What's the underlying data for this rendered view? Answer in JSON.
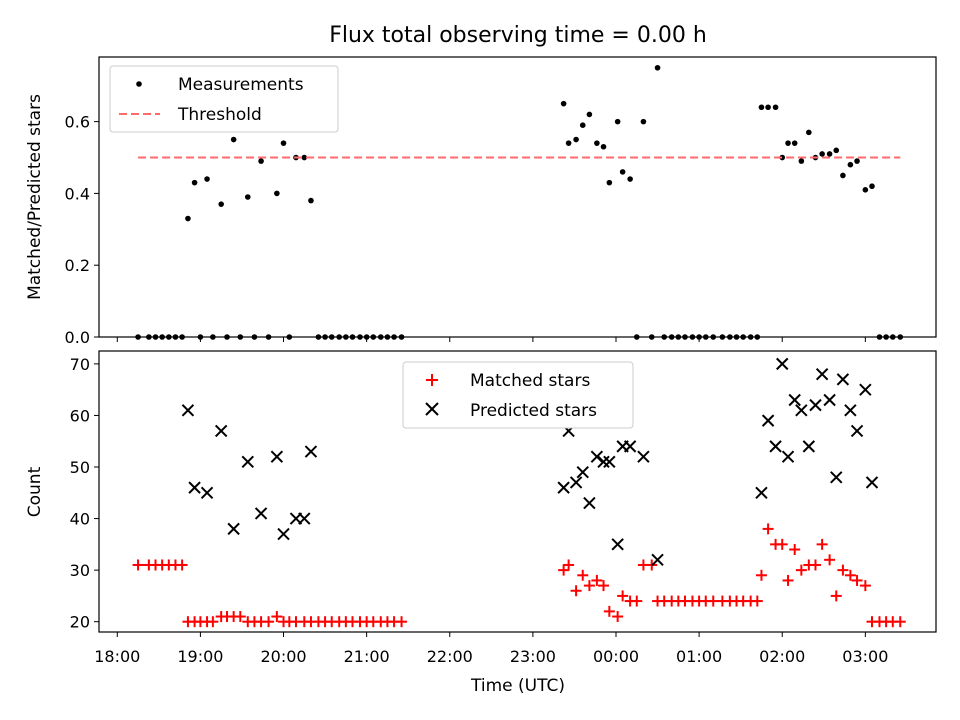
{
  "chart_data": [
    {
      "type": "scatter",
      "title": "Flux total observing time = 0.00 h",
      "xlabel": "",
      "ylabel": "Matched/Predicted stars",
      "ylim": [
        0,
        0.78
      ],
      "yticks": [
        "0.0",
        "0.2",
        "0.4",
        "0.6"
      ],
      "grid": false,
      "legend_position": "upper-left",
      "threshold": 0.5,
      "series": [
        {
          "name": "Measurements",
          "color": "#000000",
          "marker": "dot",
          "points": [
            [
              18.25,
              0
            ],
            [
              18.38,
              0
            ],
            [
              18.46,
              0
            ],
            [
              18.54,
              0
            ],
            [
              18.62,
              0
            ],
            [
              18.7,
              0
            ],
            [
              18.78,
              0
            ],
            [
              18.85,
              0.33
            ],
            [
              18.93,
              0.43
            ],
            [
              19.0,
              0
            ],
            [
              19.08,
              0.44
            ],
            [
              19.15,
              0
            ],
            [
              19.25,
              0.37
            ],
            [
              19.32,
              0
            ],
            [
              19.4,
              0.55
            ],
            [
              19.48,
              0
            ],
            [
              19.57,
              0.39
            ],
            [
              19.65,
              0
            ],
            [
              19.73,
              0.49
            ],
            [
              19.82,
              0
            ],
            [
              19.92,
              0.4
            ],
            [
              20.0,
              0.54
            ],
            [
              20.07,
              0
            ],
            [
              20.15,
              0.5
            ],
            [
              20.25,
              0.5
            ],
            [
              20.33,
              0.38
            ],
            [
              20.42,
              0
            ],
            [
              20.5,
              0
            ],
            [
              20.58,
              0
            ],
            [
              20.67,
              0
            ],
            [
              20.75,
              0
            ],
            [
              20.83,
              0
            ],
            [
              20.92,
              0
            ],
            [
              21.0,
              0
            ],
            [
              21.08,
              0
            ],
            [
              21.17,
              0
            ],
            [
              21.25,
              0
            ],
            [
              21.33,
              0
            ],
            [
              21.42,
              0
            ],
            [
              23.37,
              0.65
            ],
            [
              23.43,
              0.54
            ],
            [
              23.52,
              0.55
            ],
            [
              23.6,
              0.59
            ],
            [
              23.68,
              0.62
            ],
            [
              23.77,
              0.54
            ],
            [
              23.85,
              0.53
            ],
            [
              23.92,
              0.43
            ],
            [
              24.02,
              0.6
            ],
            [
              24.08,
              0.46
            ],
            [
              24.17,
              0.44
            ],
            [
              24.25,
              0
            ],
            [
              24.33,
              0.6
            ],
            [
              24.43,
              0
            ],
            [
              24.5,
              0.75
            ],
            [
              24.58,
              0
            ],
            [
              24.67,
              0
            ],
            [
              24.75,
              0
            ],
            [
              24.83,
              0
            ],
            [
              24.92,
              0
            ],
            [
              25.0,
              0
            ],
            [
              25.08,
              0
            ],
            [
              25.17,
              0
            ],
            [
              25.28,
              0
            ],
            [
              25.37,
              0
            ],
            [
              25.45,
              0
            ],
            [
              25.53,
              0
            ],
            [
              25.62,
              0
            ],
            [
              25.7,
              0
            ],
            [
              25.75,
              0.64
            ],
            [
              25.83,
              0.64
            ],
            [
              25.92,
              0.64
            ],
            [
              26.0,
              0.5
            ],
            [
              26.07,
              0.54
            ],
            [
              26.15,
              0.54
            ],
            [
              26.23,
              0.49
            ],
            [
              26.32,
              0.57
            ],
            [
              26.4,
              0.5
            ],
            [
              26.48,
              0.51
            ],
            [
              26.57,
              0.51
            ],
            [
              26.65,
              0.52
            ],
            [
              26.73,
              0.45
            ],
            [
              26.82,
              0.48
            ],
            [
              26.9,
              0.49
            ],
            [
              27.0,
              0.41
            ],
            [
              27.08,
              0.42
            ],
            [
              27.17,
              0
            ],
            [
              27.25,
              0
            ],
            [
              27.33,
              0
            ],
            [
              27.42,
              0
            ]
          ]
        },
        {
          "name": "Threshold",
          "color": "#ff6b6b",
          "style": "dashed",
          "points": [
            [
              18.25,
              0.5
            ],
            [
              27.42,
              0.5
            ]
          ]
        }
      ]
    },
    {
      "type": "scatter",
      "title": "",
      "xlabel": "Time (UTC)",
      "ylabel": "Count",
      "ylim": [
        18,
        72.5
      ],
      "yticks": [
        "20",
        "30",
        "40",
        "50",
        "60",
        "70"
      ],
      "xlim": [
        17.78,
        27.85
      ],
      "xticks": [
        {
          "v": 18,
          "label": "18:00"
        },
        {
          "v": 19,
          "label": "19:00"
        },
        {
          "v": 20,
          "label": "20:00"
        },
        {
          "v": 21,
          "label": "21:00"
        },
        {
          "v": 22,
          "label": "22:00"
        },
        {
          "v": 23,
          "label": "23:00"
        },
        {
          "v": 24,
          "label": "00:00"
        },
        {
          "v": 25,
          "label": "01:00"
        },
        {
          "v": 26,
          "label": "02:00"
        },
        {
          "v": 27,
          "label": "03:00"
        }
      ],
      "grid": false,
      "legend_position": "upper-center",
      "series": [
        {
          "name": "Matched stars",
          "color": "#ff0000",
          "marker": "plus",
          "points": [
            [
              18.25,
              31
            ],
            [
              18.38,
              31
            ],
            [
              18.46,
              31
            ],
            [
              18.54,
              31
            ],
            [
              18.62,
              31
            ],
            [
              18.7,
              31
            ],
            [
              18.78,
              31
            ],
            [
              18.85,
              20
            ],
            [
              18.93,
              20
            ],
            [
              19.0,
              20
            ],
            [
              19.08,
              20
            ],
            [
              19.15,
              20
            ],
            [
              19.25,
              21
            ],
            [
              19.32,
              21
            ],
            [
              19.4,
              21
            ],
            [
              19.48,
              21
            ],
            [
              19.57,
              20
            ],
            [
              19.65,
              20
            ],
            [
              19.73,
              20
            ],
            [
              19.82,
              20
            ],
            [
              19.92,
              21
            ],
            [
              20.0,
              20
            ],
            [
              20.07,
              20
            ],
            [
              20.15,
              20
            ],
            [
              20.25,
              20
            ],
            [
              20.33,
              20
            ],
            [
              20.42,
              20
            ],
            [
              20.5,
              20
            ],
            [
              20.58,
              20
            ],
            [
              20.67,
              20
            ],
            [
              20.75,
              20
            ],
            [
              20.83,
              20
            ],
            [
              20.92,
              20
            ],
            [
              21.0,
              20
            ],
            [
              21.08,
              20
            ],
            [
              21.17,
              20
            ],
            [
              21.25,
              20
            ],
            [
              21.33,
              20
            ],
            [
              21.42,
              20
            ],
            [
              23.37,
              30
            ],
            [
              23.43,
              31
            ],
            [
              23.52,
              26
            ],
            [
              23.6,
              29
            ],
            [
              23.68,
              27
            ],
            [
              23.77,
              28
            ],
            [
              23.85,
              27
            ],
            [
              23.92,
              22
            ],
            [
              24.02,
              21
            ],
            [
              24.08,
              25
            ],
            [
              24.17,
              24
            ],
            [
              24.25,
              24
            ],
            [
              24.33,
              31
            ],
            [
              24.43,
              31
            ],
            [
              24.5,
              24
            ],
            [
              24.58,
              24
            ],
            [
              24.67,
              24
            ],
            [
              24.75,
              24
            ],
            [
              24.83,
              24
            ],
            [
              24.92,
              24
            ],
            [
              25.0,
              24
            ],
            [
              25.08,
              24
            ],
            [
              25.17,
              24
            ],
            [
              25.28,
              24
            ],
            [
              25.37,
              24
            ],
            [
              25.45,
              24
            ],
            [
              25.53,
              24
            ],
            [
              25.62,
              24
            ],
            [
              25.7,
              24
            ],
            [
              25.75,
              29
            ],
            [
              25.83,
              38
            ],
            [
              25.92,
              35
            ],
            [
              26.0,
              35
            ],
            [
              26.07,
              28
            ],
            [
              26.15,
              34
            ],
            [
              26.23,
              30
            ],
            [
              26.32,
              31
            ],
            [
              26.4,
              31
            ],
            [
              26.48,
              35
            ],
            [
              26.57,
              32
            ],
            [
              26.65,
              25
            ],
            [
              26.73,
              30
            ],
            [
              26.82,
              29
            ],
            [
              26.9,
              28
            ],
            [
              27.0,
              27
            ],
            [
              27.08,
              20
            ],
            [
              27.17,
              20
            ],
            [
              27.25,
              20
            ],
            [
              27.33,
              20
            ],
            [
              27.42,
              20
            ]
          ]
        },
        {
          "name": "Predicted stars",
          "color": "#000000",
          "marker": "x",
          "points": [
            [
              18.85,
              61
            ],
            [
              18.93,
              46
            ],
            [
              19.08,
              45
            ],
            [
              19.25,
              57
            ],
            [
              19.4,
              38
            ],
            [
              19.57,
              51
            ],
            [
              19.73,
              41
            ],
            [
              19.92,
              52
            ],
            [
              20.0,
              37
            ],
            [
              20.15,
              40
            ],
            [
              20.25,
              40
            ],
            [
              20.33,
              53
            ],
            [
              23.37,
              46
            ],
            [
              23.43,
              57
            ],
            [
              23.52,
              47
            ],
            [
              23.6,
              49
            ],
            [
              23.68,
              43
            ],
            [
              23.77,
              52
            ],
            [
              23.85,
              51
            ],
            [
              23.92,
              51
            ],
            [
              24.02,
              35
            ],
            [
              24.08,
              54
            ],
            [
              24.17,
              54
            ],
            [
              24.33,
              52
            ],
            [
              24.5,
              32
            ],
            [
              25.75,
              45
            ],
            [
              25.83,
              59
            ],
            [
              25.92,
              54
            ],
            [
              26.0,
              70
            ],
            [
              26.07,
              52
            ],
            [
              26.15,
              63
            ],
            [
              26.23,
              61
            ],
            [
              26.32,
              54
            ],
            [
              26.4,
              62
            ],
            [
              26.48,
              68
            ],
            [
              26.57,
              63
            ],
            [
              26.65,
              48
            ],
            [
              26.73,
              67
            ],
            [
              26.82,
              61
            ],
            [
              26.9,
              57
            ],
            [
              27.0,
              65
            ],
            [
              27.08,
              47
            ]
          ]
        }
      ]
    }
  ]
}
